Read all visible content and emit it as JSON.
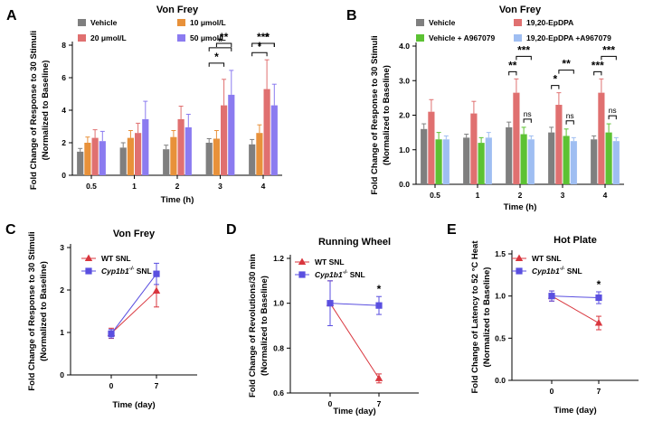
{
  "colors": {
    "vehicle": "#7f7f7f",
    "dose10": "#e8913a",
    "dose20": "#e07070",
    "dose50": "#8b7bf0",
    "drug": "#e07070",
    "vehA": "#5cc233",
    "drugA": "#9fbef2",
    "wt": "#d9363e",
    "ko": "#5a4fe0"
  },
  "chart_data": [
    {
      "id": "A",
      "panel_label": "A",
      "type": "bar",
      "title": "Von Frey",
      "xlabel": "Time (h)",
      "ylabel_line1": "Fold Change of Response to 30 Stimuli",
      "ylabel_line2": "(Normalized to Baseline)",
      "ylim": [
        0,
        8
      ],
      "yticks": [
        "0",
        "2",
        "4",
        "6",
        "8"
      ],
      "categories": [
        "0.5",
        "1",
        "2",
        "3",
        "4"
      ],
      "series": [
        {
          "name": "Vehicle",
          "color_key": "vehicle",
          "values": [
            1.45,
            1.7,
            1.6,
            2.0,
            1.9
          ],
          "err": [
            0.2,
            0.3,
            0.25,
            0.25,
            0.3
          ]
        },
        {
          "name": "10 μmol/L",
          "color_key": "dose10",
          "values": [
            2.0,
            2.3,
            2.35,
            2.25,
            2.6
          ],
          "err": [
            0.35,
            0.45,
            0.4,
            0.5,
            0.5
          ]
        },
        {
          "name": "20 μmol/L",
          "color_key": "dose20",
          "values": [
            2.3,
            2.6,
            3.45,
            4.3,
            5.3
          ],
          "err": [
            0.5,
            0.6,
            0.8,
            1.6,
            1.8
          ]
        },
        {
          "name": "50 μmol/L",
          "color_key": "dose50",
          "values": [
            2.1,
            3.45,
            2.95,
            4.95,
            4.3
          ],
          "err": [
            0.6,
            1.1,
            0.8,
            1.5,
            1.3
          ]
        }
      ],
      "significance": [
        {
          "cat": "3",
          "from": 0,
          "to": 2,
          "label": "*"
        },
        {
          "cat": "3",
          "from": 0,
          "to": 3,
          "label": "*"
        },
        {
          "cat": "3",
          "from": 1,
          "to": 3,
          "label": "**"
        },
        {
          "cat": "4",
          "from": 0,
          "to": 2,
          "label": "*"
        },
        {
          "cat": "4",
          "from": 0,
          "to": 3,
          "label": "***"
        },
        {
          "cat": "4",
          "from": 1,
          "to": 3,
          "label": "*"
        }
      ]
    },
    {
      "id": "B",
      "panel_label": "B",
      "type": "bar",
      "title": "Von Frey",
      "xlabel": "Time (h)",
      "ylabel_line1": "Fold Change of Response to 30 Stimuli",
      "ylabel_line2": "(Normalized to Baseline)",
      "ylim": [
        0,
        4
      ],
      "yticks": [
        "0.0",
        "1.0",
        "2.0",
        "3.0",
        "4.0"
      ],
      "categories": [
        "0.5",
        "1",
        "2",
        "3",
        "4"
      ],
      "series": [
        {
          "name": "Vehicle",
          "color_key": "vehicle",
          "values": [
            1.6,
            1.35,
            1.65,
            1.5,
            1.3
          ],
          "err": [
            0.15,
            0.1,
            0.15,
            0.15,
            0.1
          ]
        },
        {
          "name": "19,20-EpDPA",
          "color_key": "drug",
          "values": [
            2.1,
            2.05,
            2.65,
            2.3,
            2.65
          ],
          "err": [
            0.35,
            0.35,
            0.4,
            0.35,
            0.4
          ]
        },
        {
          "name": "Vehicle + A967079",
          "color_key": "vehA",
          "values": [
            1.3,
            1.2,
            1.45,
            1.4,
            1.5
          ],
          "err": [
            0.2,
            0.15,
            0.2,
            0.2,
            0.25
          ]
        },
        {
          "name": "19,20-EpDPA +A967079",
          "color_key": "drugA",
          "values": [
            1.3,
            1.35,
            1.3,
            1.25,
            1.25
          ],
          "err": [
            0.1,
            0.15,
            0.1,
            0.1,
            0.1
          ]
        }
      ],
      "significance": [
        {
          "cat": "2",
          "from": 0,
          "to": 1,
          "label": "**"
        },
        {
          "cat": "2",
          "from": 1,
          "to": 3,
          "label": "***"
        },
        {
          "cat": "2",
          "from": 2,
          "to": 3,
          "label": "ns"
        },
        {
          "cat": "3",
          "from": 0,
          "to": 1,
          "label": "*"
        },
        {
          "cat": "3",
          "from": 1,
          "to": 3,
          "label": "**"
        },
        {
          "cat": "3",
          "from": 2,
          "to": 3,
          "label": "ns"
        },
        {
          "cat": "4",
          "from": 0,
          "to": 1,
          "label": "***"
        },
        {
          "cat": "4",
          "from": 1,
          "to": 3,
          "label": "***"
        },
        {
          "cat": "4",
          "from": 2,
          "to": 3,
          "label": "ns"
        }
      ]
    },
    {
      "id": "C",
      "panel_label": "C",
      "type": "line",
      "title": "Von Frey",
      "xlabel": "Time (day)",
      "ylabel_line1": "Fold Change of Response to 30 Stimuli",
      "ylabel_line2": "(Normalized to Baseline)",
      "ylim": [
        0,
        3
      ],
      "yticks": [
        "0",
        "1",
        "2",
        "3"
      ],
      "x": [
        "0",
        "7"
      ],
      "series": [
        {
          "name": "WT SNL",
          "italic_part": "",
          "color_key": "wt",
          "marker": "triangle",
          "values": [
            0.98,
            1.98
          ],
          "err": [
            0.12,
            0.38
          ]
        },
        {
          "name": " SNL",
          "italic_part": "Cyp1b1",
          "sup": "-/-",
          "color_key": "ko",
          "marker": "square",
          "values": [
            0.97,
            2.38
          ],
          "err": [
            0.1,
            0.25
          ]
        }
      ],
      "significance": []
    },
    {
      "id": "D",
      "panel_label": "D",
      "type": "line",
      "title": "Running Wheel",
      "xlabel": "Time (day)",
      "ylabel_line1": "Fold Change of Revolutions/30 min",
      "ylabel_line2": "(Normalized to Baseline)",
      "ylim": [
        0.6,
        1.2
      ],
      "yticks": [
        "0.6",
        "0.8",
        "1.0",
        "1.2"
      ],
      "x": [
        "0",
        "7"
      ],
      "series": [
        {
          "name": "WT SNL",
          "italic_part": "",
          "color_key": "wt",
          "marker": "triangle",
          "values": [
            1.0,
            0.665
          ],
          "err": [
            0.1,
            0.02
          ]
        },
        {
          "name": " SNL",
          "italic_part": "Cyp1b1",
          "sup": "-/-",
          "color_key": "ko",
          "marker": "square",
          "values": [
            1.0,
            0.99
          ],
          "err": [
            0.1,
            0.04
          ]
        }
      ],
      "significance": [
        {
          "x": "7",
          "label": "*"
        }
      ]
    },
    {
      "id": "E",
      "panel_label": "E",
      "type": "line",
      "title": "Hot Plate",
      "xlabel": "Time (day)",
      "ylabel_line1": "Fold Change of Latency to 52 °C Heat",
      "ylabel_line2": "(Normalized to Baseline)",
      "ylim": [
        0,
        1.5
      ],
      "yticks": [
        "0.0",
        "0.5",
        "1.0",
        "1.5"
      ],
      "x": [
        "0",
        "7"
      ],
      "series": [
        {
          "name": "WT SNL",
          "italic_part": "",
          "color_key": "wt",
          "marker": "triangle",
          "values": [
            1.0,
            0.68
          ],
          "err": [
            0.06,
            0.08
          ]
        },
        {
          "name": " SNL",
          "italic_part": "Cyp1b1",
          "sup": "-/-",
          "color_key": "ko",
          "marker": "square",
          "values": [
            1.0,
            0.98
          ],
          "err": [
            0.06,
            0.07
          ]
        }
      ],
      "significance": [
        {
          "x": "7",
          "label": "*"
        }
      ]
    }
  ]
}
